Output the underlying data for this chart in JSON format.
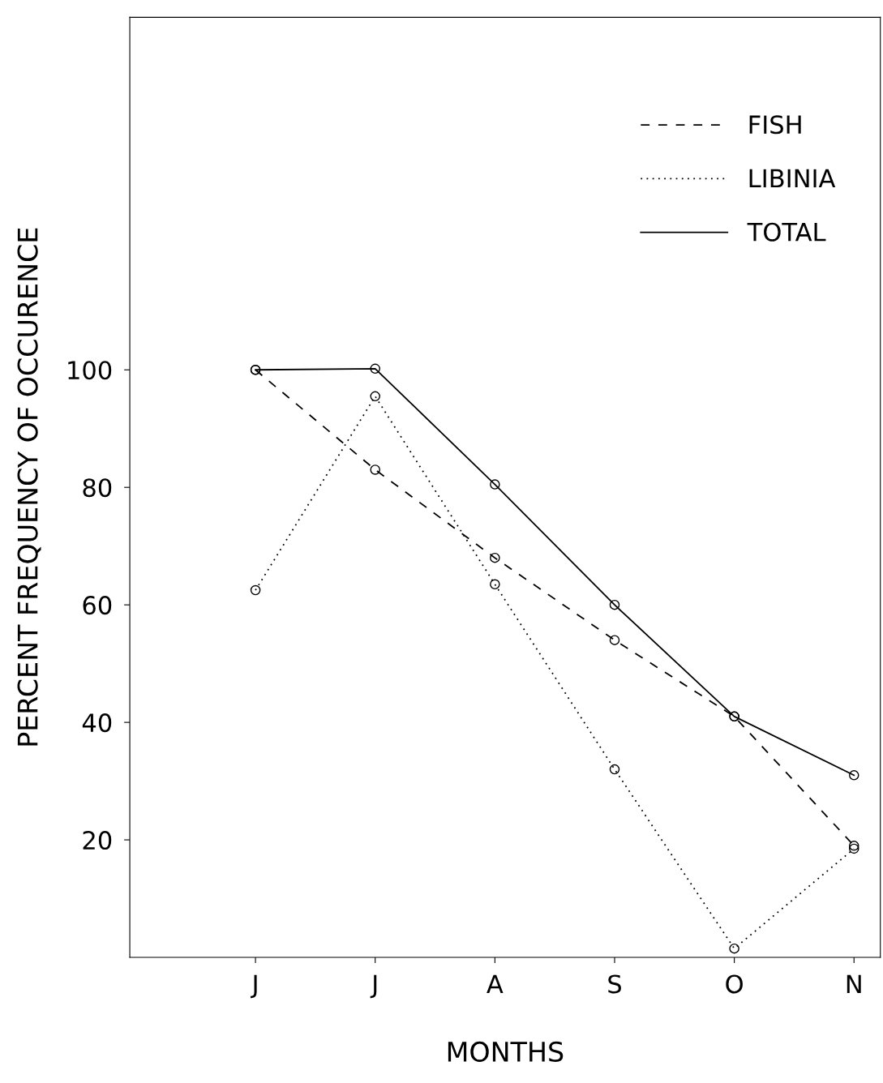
{
  "chart_data": {
    "type": "line",
    "xlabel": "MONTHS",
    "ylabel": "PERCENT FREQUENCY OF OCCURENCE",
    "categories": [
      "J",
      "J",
      "A",
      "S",
      "O",
      "N"
    ],
    "series": [
      {
        "name": "FISH",
        "color": "#000000",
        "line_style": "dashed",
        "values": [
          100,
          83,
          68,
          54,
          41,
          19
        ]
      },
      {
        "name": "LIBINIA",
        "color": "#000000",
        "line_style": "dotted",
        "values": [
          62.5,
          95.5,
          63.5,
          32,
          1.5,
          18.5
        ]
      },
      {
        "name": "TOTAL",
        "color": "#000000",
        "line_style": "solid",
        "values": [
          100,
          100.2,
          80.5,
          60,
          41,
          31
        ]
      }
    ],
    "ylim": [
      0,
      160
    ],
    "yticks": [
      20,
      40,
      60,
      80,
      100
    ],
    "marker": "circle",
    "legend": "top right",
    "grid": false
  }
}
